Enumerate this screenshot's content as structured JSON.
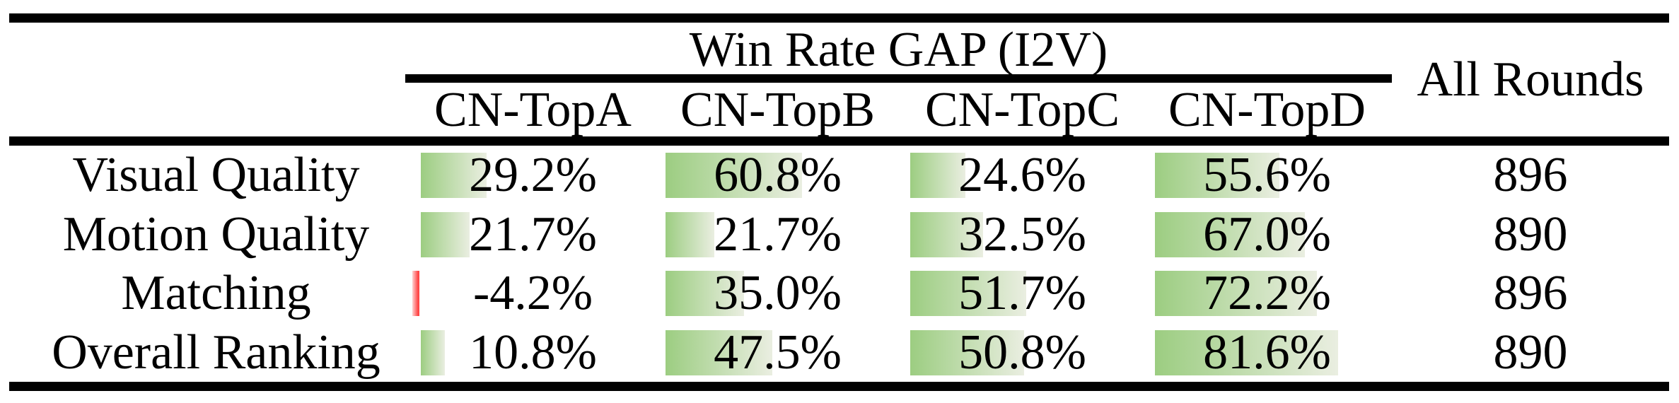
{
  "table": {
    "group_header": "Win Rate GAP (I2V)",
    "all_rounds_label": "All Rounds",
    "columns": [
      "CN-TopA",
      "CN-TopB",
      "CN-TopC",
      "CN-TopD"
    ],
    "rows": [
      {
        "label": "Visual Quality",
        "values": [
          "29.2%",
          "60.8%",
          "24.6%",
          "55.6%"
        ],
        "all_rounds": "896"
      },
      {
        "label": "Motion Quality",
        "values": [
          "21.7%",
          "21.7%",
          "32.5%",
          "67.0%"
        ],
        "all_rounds": "890"
      },
      {
        "label": "Matching",
        "values": [
          "-4.2%",
          "35.0%",
          "51.7%",
          "72.2%"
        ],
        "all_rounds": "896"
      },
      {
        "label": "Overall Ranking",
        "values": [
          "10.8%",
          "47.5%",
          "50.8%",
          "81.6%"
        ],
        "all_rounds": "890"
      }
    ]
  },
  "colors": {
    "rule": "#000000",
    "bar_positive_start": "#9ccd81",
    "bar_positive_end": "#eaeee1",
    "bar_negative": "#ff4747",
    "bar_negative_light": "#ffd2d2"
  },
  "chart_data": {
    "type": "table",
    "title": "Win Rate GAP (I2V)",
    "categories": [
      "Visual Quality",
      "Motion Quality",
      "Matching",
      "Overall Ranking"
    ],
    "series": [
      {
        "name": "CN-TopA",
        "values": [
          29.2,
          21.7,
          -4.2,
          10.8
        ]
      },
      {
        "name": "CN-TopB",
        "values": [
          60.8,
          21.7,
          35.0,
          47.5
        ]
      },
      {
        "name": "CN-TopC",
        "values": [
          24.6,
          32.5,
          51.7,
          50.8
        ]
      },
      {
        "name": "CN-TopD",
        "values": [
          55.6,
          67.0,
          72.2,
          81.6
        ]
      }
    ],
    "all_rounds": [
      896,
      890,
      896,
      890
    ],
    "value_unit": "%",
    "bar_scale": "0-100% of cell width, green data bars; negative values shown as thin red bar"
  }
}
